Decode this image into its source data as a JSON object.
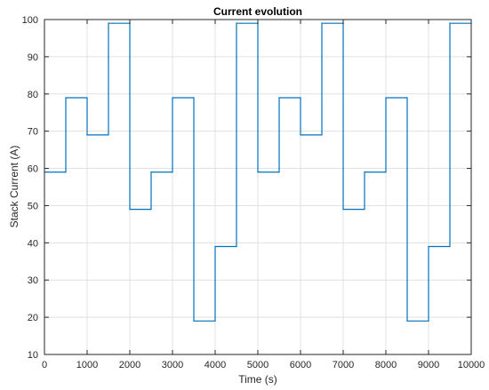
{
  "chart_data": {
    "type": "line",
    "title": "Current evolution",
    "xlabel": "Time (s)",
    "ylabel": "Stack Current (A)",
    "xlim": [
      0,
      10000
    ],
    "ylim": [
      10,
      100
    ],
    "x_ticks": [
      0,
      1000,
      2000,
      3000,
      4000,
      5000,
      6000,
      7000,
      8000,
      9000,
      10000
    ],
    "y_ticks": [
      10,
      20,
      30,
      40,
      50,
      60,
      70,
      80,
      90,
      100
    ],
    "grid": true,
    "line_color": "#0072BD",
    "series": [
      {
        "x": [
          0,
          500,
          500,
          1000,
          1000,
          1500,
          1500,
          2000,
          2000,
          2500,
          2500,
          3000,
          3000,
          3500,
          3500,
          4000,
          4000,
          4500,
          4500,
          5000,
          5000,
          5500,
          5500,
          6000,
          6000,
          6500,
          6500,
          7000,
          7000,
          7500,
          7500,
          8000,
          8000,
          8500,
          8500,
          9000,
          9000,
          9500,
          9500,
          10000
        ],
        "values": [
          59,
          59,
          79,
          79,
          69,
          69,
          99,
          99,
          49,
          49,
          59,
          59,
          79,
          79,
          19,
          19,
          39,
          39,
          99,
          99,
          59,
          59,
          79,
          79,
          69,
          69,
          99,
          99,
          49,
          49,
          59,
          59,
          79,
          79,
          19,
          19,
          39,
          39,
          99,
          99
        ]
      }
    ]
  }
}
